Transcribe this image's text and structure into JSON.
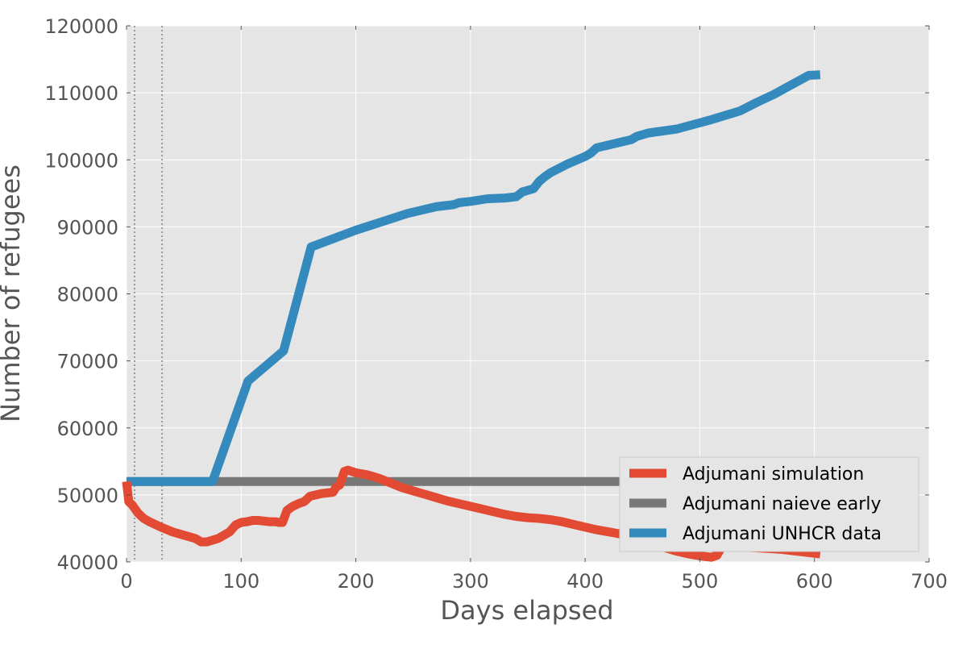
{
  "chart_data": {
    "type": "line",
    "xlabel": "Days elapsed",
    "ylabel": "Number of refugees",
    "xlim": [
      0,
      700
    ],
    "ylim": [
      40000,
      120000
    ],
    "xticks": [
      0,
      100,
      200,
      300,
      400,
      500,
      600,
      700
    ],
    "yticks": [
      40000,
      50000,
      60000,
      70000,
      80000,
      90000,
      100000,
      110000,
      120000
    ],
    "grid": true,
    "legend_position": "bottom-right",
    "vertical_markers": [
      7,
      31
    ],
    "colors": {
      "background": "#e5e5e5",
      "grid": "#ffffff",
      "marker": "#999999",
      "simulation": "#e24a33",
      "naive": "#777777",
      "unhcr": "#348abd"
    },
    "series": [
      {
        "name": "Adjumani simulation",
        "color": "#e24a33",
        "x": [
          0,
          2,
          5,
          10,
          15,
          20,
          30,
          40,
          50,
          60,
          65,
          70,
          80,
          90,
          95,
          100,
          105,
          110,
          115,
          120,
          125,
          130,
          133,
          136,
          140,
          145,
          150,
          155,
          160,
          165,
          170,
          175,
          180,
          183,
          186,
          190,
          193,
          200,
          210,
          220,
          230,
          240,
          250,
          260,
          270,
          280,
          290,
          300,
          310,
          320,
          330,
          340,
          350,
          360,
          370,
          380,
          390,
          400,
          410,
          420,
          430,
          440,
          450,
          460,
          470,
          480,
          490,
          500,
          510,
          515,
          520,
          530,
          540,
          550,
          560,
          570,
          580,
          590,
          605
        ],
        "y": [
          52000,
          49000,
          48500,
          47300,
          46500,
          46000,
          45200,
          44500,
          44000,
          43500,
          43000,
          43000,
          43500,
          44500,
          45500,
          45900,
          46000,
          46200,
          46200,
          46100,
          46000,
          46000,
          45900,
          45900,
          47700,
          48300,
          48700,
          49000,
          49800,
          50000,
          50200,
          50300,
          50400,
          51200,
          51500,
          53500,
          53700,
          53300,
          53000,
          52500,
          51800,
          51100,
          50600,
          50100,
          49600,
          49100,
          48700,
          48300,
          47900,
          47500,
          47100,
          46800,
          46600,
          46500,
          46300,
          46000,
          45600,
          45200,
          44800,
          44500,
          44200,
          43800,
          43300,
          42700,
          42100,
          41600,
          41200,
          40900,
          40700,
          41000,
          42500,
          42300,
          42200,
          42100,
          42000,
          41900,
          41700,
          41500,
          41200
        ]
      },
      {
        "name": "Adjumani naieve early",
        "color": "#777777",
        "x": [
          0,
          430
        ],
        "y": [
          52000,
          52000
        ]
      },
      {
        "name": "Adjumani UNHCR data",
        "color": "#348abd",
        "x": [
          0,
          75,
          106,
          137,
          161,
          200,
          245,
          270,
          285,
          290,
          300,
          315,
          330,
          340,
          345,
          355,
          360,
          365,
          370,
          385,
          400,
          405,
          410,
          420,
          430,
          440,
          445,
          455,
          480,
          510,
          535,
          550,
          565,
          580,
          595,
          605
        ],
        "y": [
          52000,
          52000,
          67000,
          71500,
          87000,
          89500,
          92000,
          93000,
          93300,
          93600,
          93800,
          94200,
          94300,
          94500,
          95200,
          95700,
          96800,
          97500,
          98100,
          99400,
          100500,
          101000,
          101800,
          102200,
          102600,
          103000,
          103500,
          104000,
          104600,
          106000,
          107300,
          108600,
          109800,
          111200,
          112600,
          112700
        ]
      }
    ]
  }
}
